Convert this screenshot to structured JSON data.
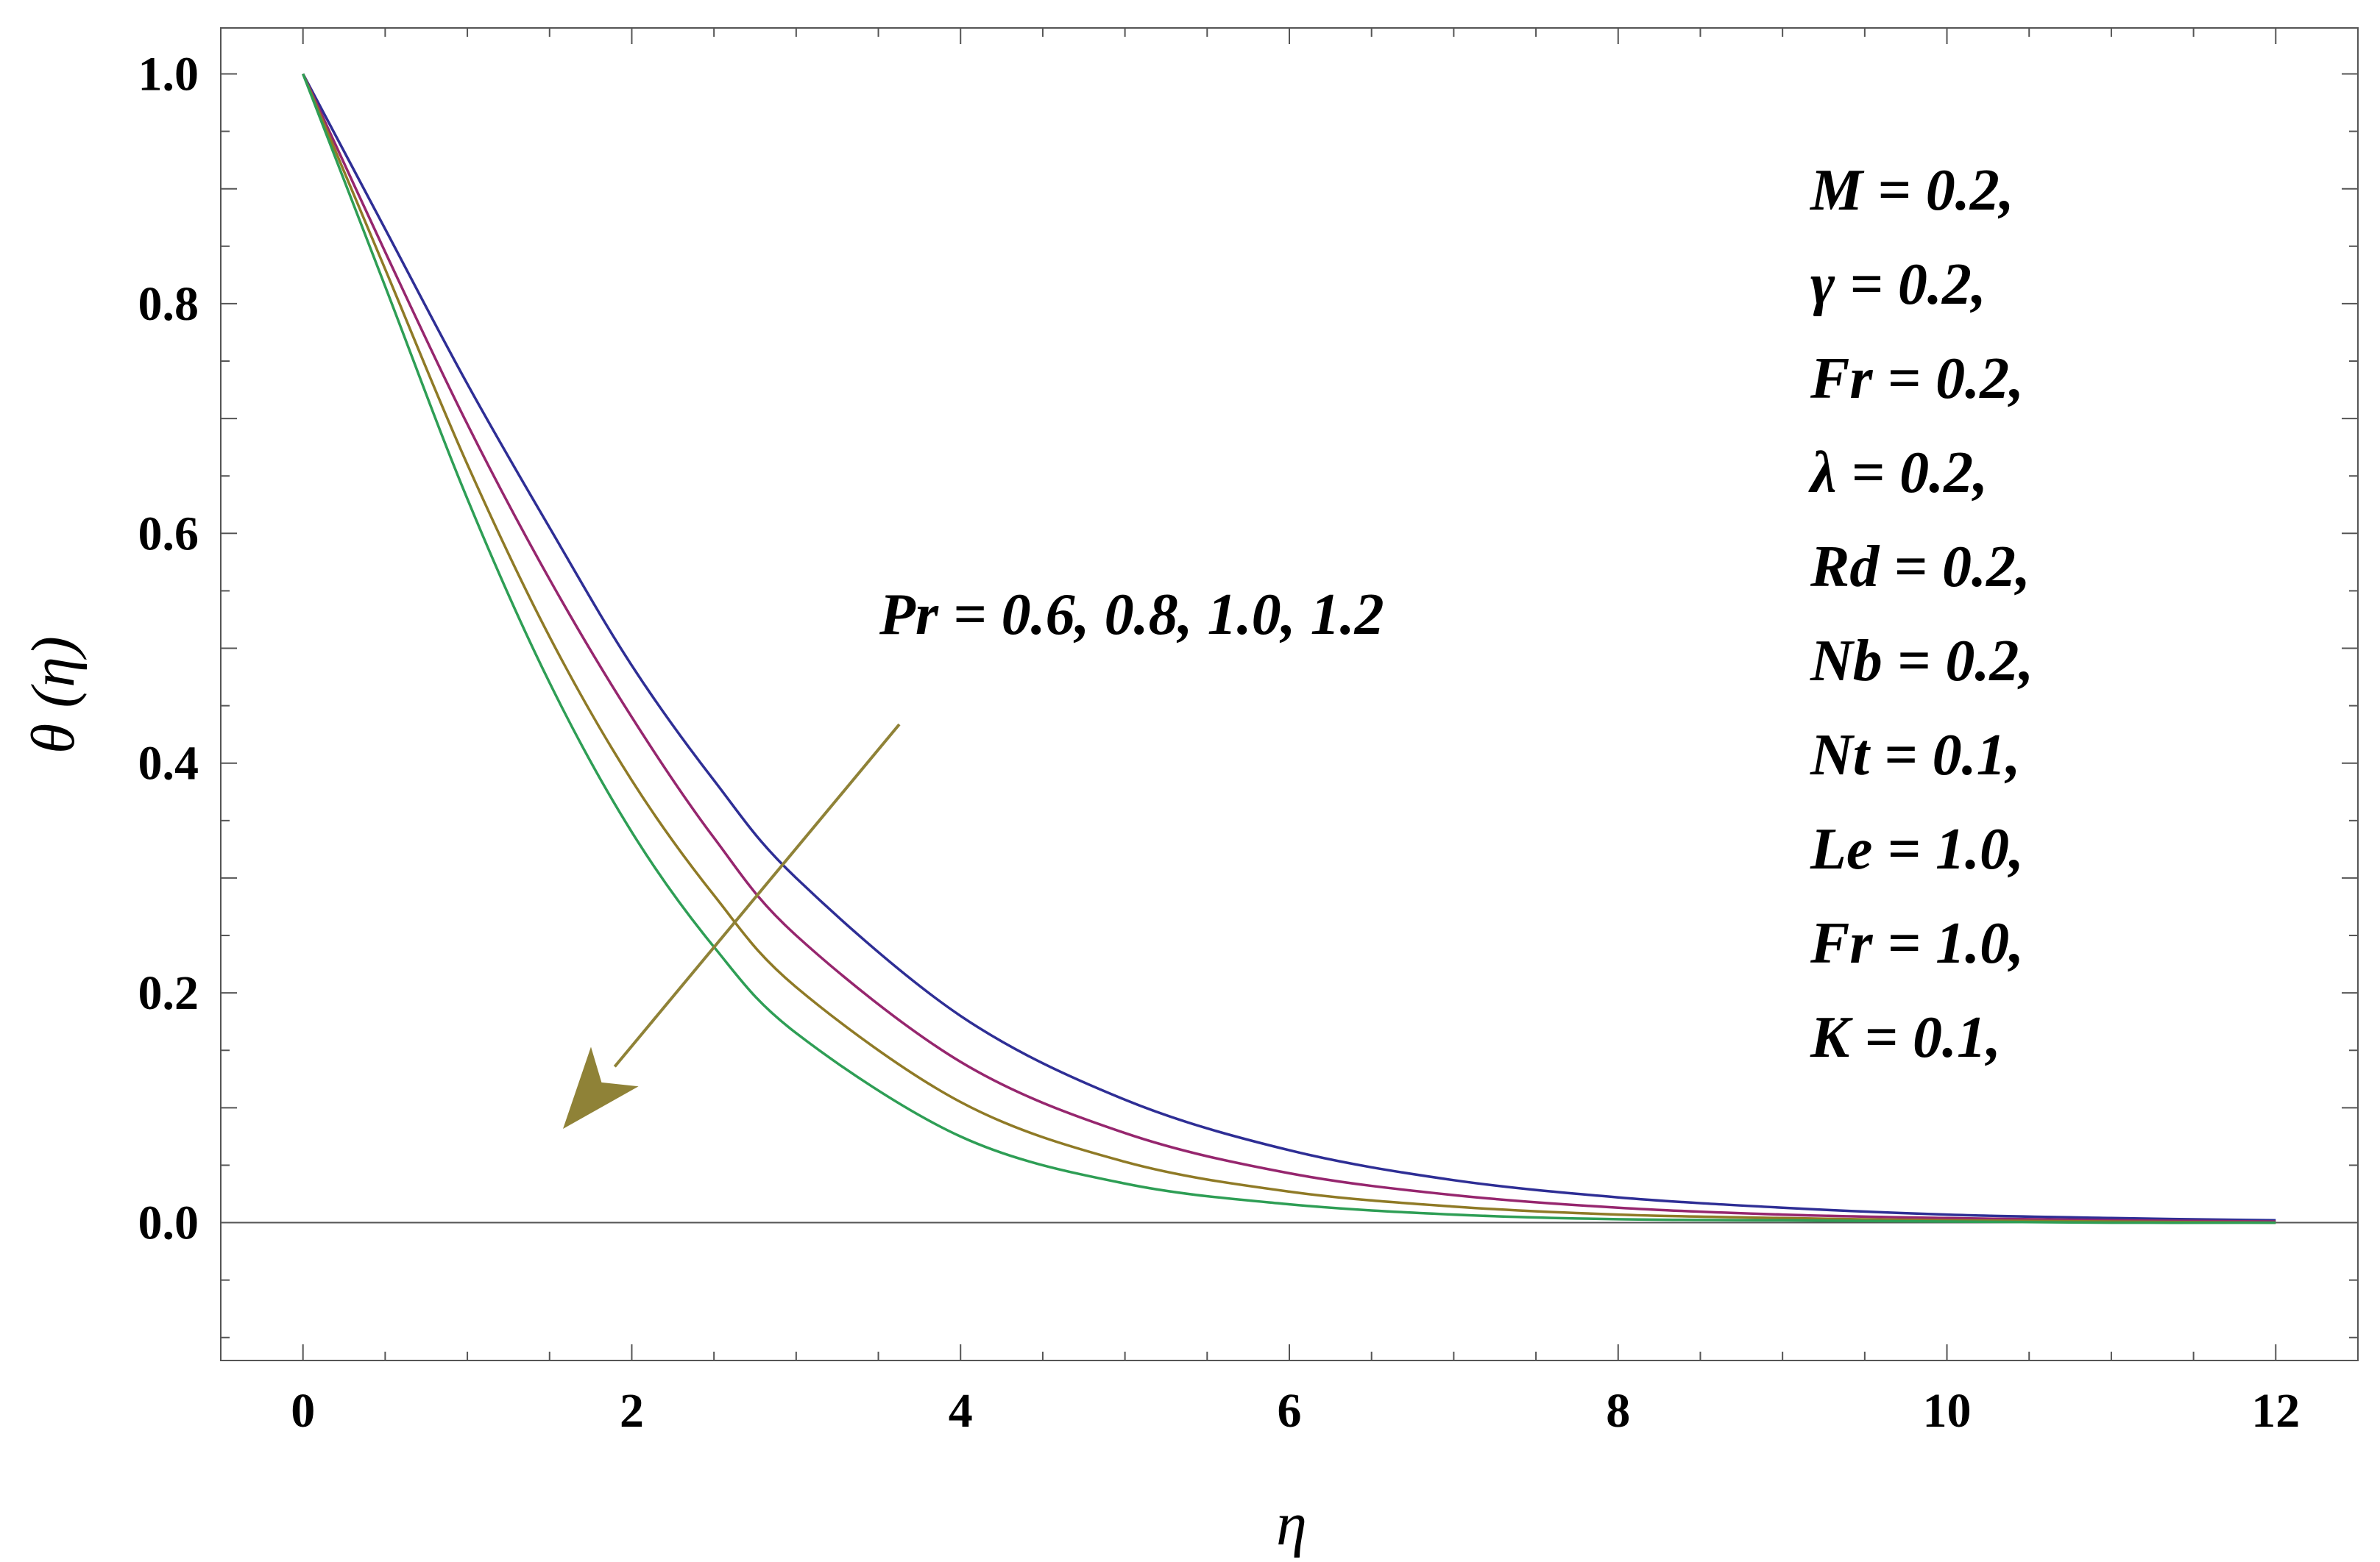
{
  "chart_data": {
    "type": "line",
    "xlabel": "η",
    "ylabel": "θ (η)",
    "xlim": [
      -0.5,
      12.5
    ],
    "ylim": [
      -0.12,
      1.04
    ],
    "x_ticks": [
      0,
      2,
      4,
      6,
      8,
      10,
      12
    ],
    "x_tick_labels": [
      "0",
      "2",
      "4",
      "6",
      "8",
      "10",
      "12"
    ],
    "y_ticks": [
      0.0,
      0.2,
      0.4,
      0.6,
      0.8,
      1.0
    ],
    "y_tick_labels": [
      "0.0",
      "0.2",
      "0.4",
      "0.6",
      "0.8",
      "1.0"
    ],
    "grid": false,
    "x": [
      0,
      0.5,
      1,
      1.5,
      2,
      2.5,
      3,
      4,
      5,
      6,
      7,
      8,
      9,
      10,
      11,
      12
    ],
    "series": [
      {
        "color": "#2e2e95",
        "values": [
          1.0,
          0.865,
          0.73,
          0.605,
          0.485,
          0.385,
          0.3,
          0.18,
          0.107,
          0.063,
          0.037,
          0.022,
          0.013,
          0.007,
          0.004,
          0.002
        ]
      },
      {
        "color": "#96266e",
        "values": [
          1.0,
          0.845,
          0.695,
          0.56,
          0.44,
          0.335,
          0.25,
          0.14,
          0.078,
          0.043,
          0.024,
          0.013,
          0.007,
          0.004,
          0.002,
          0.001
        ]
      },
      {
        "color": "#8f7a26",
        "values": [
          1.0,
          0.83,
          0.66,
          0.51,
          0.385,
          0.285,
          0.205,
          0.105,
          0.053,
          0.027,
          0.014,
          0.007,
          0.004,
          0.002,
          0.001,
          0.0
        ]
      },
      {
        "color": "#2e9e55",
        "values": [
          1.0,
          0.815,
          0.63,
          0.47,
          0.34,
          0.24,
          0.165,
          0.075,
          0.034,
          0.016,
          0.007,
          0.003,
          0.002,
          0.001,
          0.0,
          0.0
        ]
      }
    ],
    "arrow_color": "#8f8237",
    "annotation": "Pr =  0.6,  0.8,  1.0,  1.2",
    "parameters": [
      "M  =  0.2,",
      "γ  = 0.2,",
      "Fr = 0.2,",
      "λ = 0.2,",
      "Rd = 0.2,",
      "Nb = 0.2,",
      "Nt = 0.1,",
      "Le = 1.0,",
      "Fr = 1.0,",
      "K = 0.1,"
    ]
  }
}
